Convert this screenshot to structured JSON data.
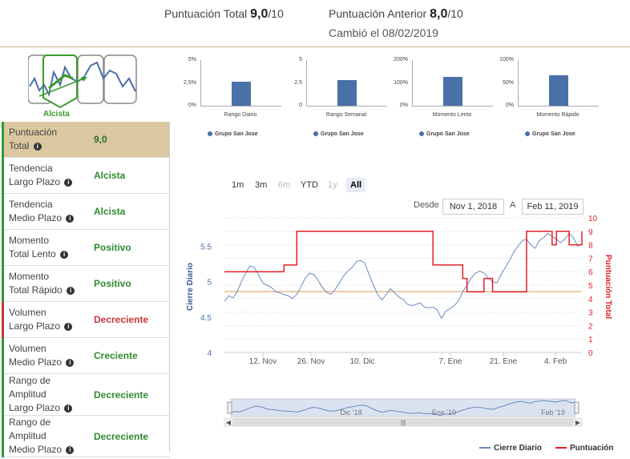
{
  "header": {
    "total_label": "Puntuación Total",
    "total_value": "9,0",
    "total_max": "/10",
    "prev_label": "Puntuación Anterior",
    "prev_value": "8,0",
    "prev_max": "/10",
    "changed": "Cambió el 08/02/2019"
  },
  "logo": {
    "label": "Alcista"
  },
  "metrics": [
    {
      "label": "Puntuación",
      "label2": "Total",
      "value": "9,0"
    },
    {
      "label": "Tendencia",
      "label2": "Largo Plazo",
      "value": "Alcista"
    },
    {
      "label": "Tendencia",
      "label2": "Medio Plazo",
      "value": "Alcista"
    },
    {
      "label": "Momento",
      "label2": "Total Lento",
      "value": "Positivo"
    },
    {
      "label": "Momento",
      "label2": "Total Rápido",
      "value": "Positivo"
    },
    {
      "label": "Volumen",
      "label2": "Largo Plazo",
      "value": "Decreciente"
    },
    {
      "label": "Volumen",
      "label2": "Medio Plazo",
      "value": "Creciente"
    },
    {
      "label": "Rango de Amplitud",
      "label2": "Largo Plazo",
      "value": "Decreciente"
    },
    {
      "label": "Rango de Amplitud",
      "label2": "Medio Plazo",
      "value": "Decreciente"
    }
  ],
  "mini_charts": [
    {
      "category": "Rango Diario",
      "value_pct": 52,
      "ticks": [
        "5%",
        "2,5%",
        "0%"
      ],
      "legend": "Grupo San Jose"
    },
    {
      "category": "Rango Semanal",
      "value_pct": 56,
      "ticks": [
        "5",
        "2.5",
        "0"
      ],
      "legend": "Grupo San Jose"
    },
    {
      "category": "Momento Lento",
      "value_pct": 63,
      "ticks": [
        "200%",
        "100%",
        "0%"
      ],
      "legend": "Grupo San Jose"
    },
    {
      "category": "Momento Rápido",
      "value_pct": 67,
      "ticks": [
        "100%",
        "50%",
        "0%"
      ],
      "legend": "Grupo San Jose"
    }
  ],
  "range_buttons": [
    {
      "label": "1m",
      "state": "normal"
    },
    {
      "label": "3m",
      "state": "normal"
    },
    {
      "label": "6m",
      "state": "disabled"
    },
    {
      "label": "YTD",
      "state": "normal"
    },
    {
      "label": "1y",
      "state": "disabled"
    },
    {
      "label": "All",
      "state": "selected"
    }
  ],
  "date_range": {
    "from_label": "Desde",
    "from": "Nov 1, 2018",
    "to_label": "A",
    "to": "Feb 11, 2019"
  },
  "chart_data": {
    "type": "line",
    "left_axis": {
      "label": "Cierre Diario",
      "ticks": [
        4,
        4.5,
        5,
        5.5
      ],
      "ylim": [
        4,
        5.9
      ]
    },
    "right_axis": {
      "label": "Puntuación Total",
      "ticks": [
        0,
        1,
        2,
        3,
        4,
        5,
        6,
        7,
        8,
        9,
        10
      ],
      "ylim": [
        0,
        10
      ]
    },
    "x_ticks": [
      "12. Nov",
      "26. Nov",
      "10. Dic",
      "7. Ene",
      "21. Ene",
      "4. Feb"
    ],
    "navigator_ticks": [
      "Dic '18",
      "Ene '19",
      "Feb '19"
    ],
    "reference_line": 4.86,
    "series": [
      {
        "name": "Cierre Diario",
        "color": "#6a8bbf",
        "values": [
          4.72,
          4.8,
          4.77,
          4.86,
          5.0,
          5.12,
          5.22,
          5.2,
          5.1,
          4.98,
          4.95,
          4.92,
          4.86,
          4.84,
          4.82,
          4.8,
          4.76,
          4.82,
          4.93,
          5.05,
          5.12,
          5.1,
          5.02,
          4.92,
          4.85,
          4.82,
          4.89,
          4.98,
          5.08,
          5.15,
          5.2,
          5.28,
          5.3,
          5.26,
          5.1,
          4.95,
          4.82,
          4.74,
          4.82,
          4.9,
          4.84,
          4.78,
          4.75,
          4.68,
          4.66,
          4.68,
          4.7,
          4.64,
          4.63,
          4.64,
          4.6,
          4.48,
          4.58,
          4.62,
          4.66,
          4.73,
          4.86,
          4.95,
          5.05,
          5.12,
          5.15,
          5.12,
          5.05,
          5.0,
          4.98,
          5.1,
          5.2,
          5.3,
          5.42,
          5.5,
          5.58,
          5.6,
          5.52,
          5.47,
          5.58,
          5.62,
          5.68,
          5.64,
          5.6,
          5.55,
          5.6,
          5.68,
          5.62,
          5.5,
          5.53
        ]
      },
      {
        "name": "Puntuación",
        "color": "#e3202a",
        "values": [
          6,
          6,
          6,
          6,
          6,
          6,
          6,
          6,
          6,
          6,
          6,
          6,
          6,
          6,
          6.5,
          6.5,
          6.5,
          9,
          9,
          9,
          9,
          9,
          9,
          9,
          9,
          9,
          9,
          9,
          9,
          9,
          9,
          9,
          9,
          9,
          9,
          9,
          9,
          9,
          9,
          9,
          9,
          9,
          9,
          9,
          9,
          9,
          9,
          9,
          9,
          6.5,
          6.5,
          6.5,
          6.5,
          6.5,
          6.5,
          6.5,
          5.5,
          4.5,
          4.5,
          4.5,
          4.5,
          5.5,
          5.5,
          4.5,
          4.5,
          4.5,
          4.5,
          4.5,
          4.5,
          4.5,
          4.5,
          9,
          9,
          9,
          9,
          9,
          9,
          8,
          9,
          9,
          9,
          8,
          8,
          8,
          9
        ]
      }
    ],
    "legend": [
      {
        "label": "Cierre Diario",
        "color": "#6a8bbf"
      },
      {
        "label": "Puntuación",
        "color": "#e3202a"
      }
    ]
  }
}
